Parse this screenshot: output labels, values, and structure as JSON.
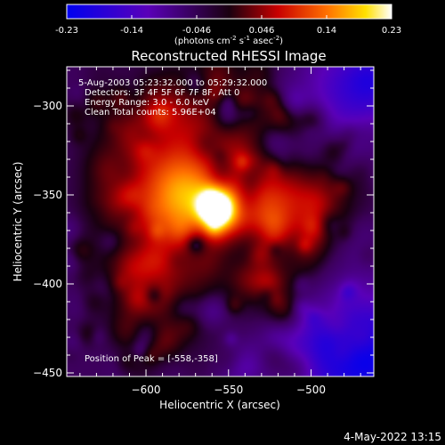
{
  "chart_data": {
    "type": "heatmap",
    "title": "Reconstructed RHESSI Image",
    "xlabel": "Heliocentric X (arcsec)",
    "ylabel": "Heliocentric Y (arcsec)",
    "xlim": [
      -648,
      -462
    ],
    "ylim": [
      -452,
      -278
    ],
    "xticks": [
      -600,
      -550,
      -500
    ],
    "yticks": [
      -300,
      -350,
      -400,
      -450
    ],
    "colorbar": {
      "range": [
        -0.23,
        0.23
      ],
      "ticks": [
        "-0.23",
        "-0.14",
        "-0.046",
        "0.046",
        "0.14",
        "0.23"
      ],
      "unit_pre": "(photons cm",
      "unit_sup1": "-2",
      "unit_mid1": " s",
      "unit_sup2": "-1",
      "unit_mid2": " asec",
      "unit_sup3": "-2",
      "unit_post": ")"
    },
    "annotations": [
      "5-Aug-2003 05:23:32.000 to 05:29:32.000",
      "Detectors: 3F 4F 5F 6F 7F 8F, Att 0",
      "Energy Range: 3.0 - 6.0 keV",
      "Clean     Total counts: 5.96E+04"
    ],
    "peak_label": "Position of Peak = [-558,-358]",
    "peak": [
      -558,
      -358
    ],
    "sources": [
      {
        "x": -558,
        "y": -358,
        "sx": 7,
        "sy": 7,
        "amp": 1.0
      },
      {
        "x": -530,
        "y": -355,
        "sx": 28,
        "sy": 14,
        "amp": 0.45
      },
      {
        "x": -575,
        "y": -350,
        "sx": 16,
        "sy": 16,
        "amp": 0.45
      },
      {
        "x": -600,
        "y": -345,
        "sx": 22,
        "sy": 25,
        "amp": 0.22
      },
      {
        "x": -565,
        "y": -310,
        "sx": 30,
        "sy": 20,
        "amp": 0.25
      },
      {
        "x": -590,
        "y": -395,
        "sx": 24,
        "sy": 25,
        "amp": 0.2
      },
      {
        "x": -515,
        "y": -400,
        "sx": 16,
        "sy": 14,
        "amp": 0.12
      }
    ]
  },
  "footer": {
    "timestamp": "4-May-2022 13:15"
  }
}
